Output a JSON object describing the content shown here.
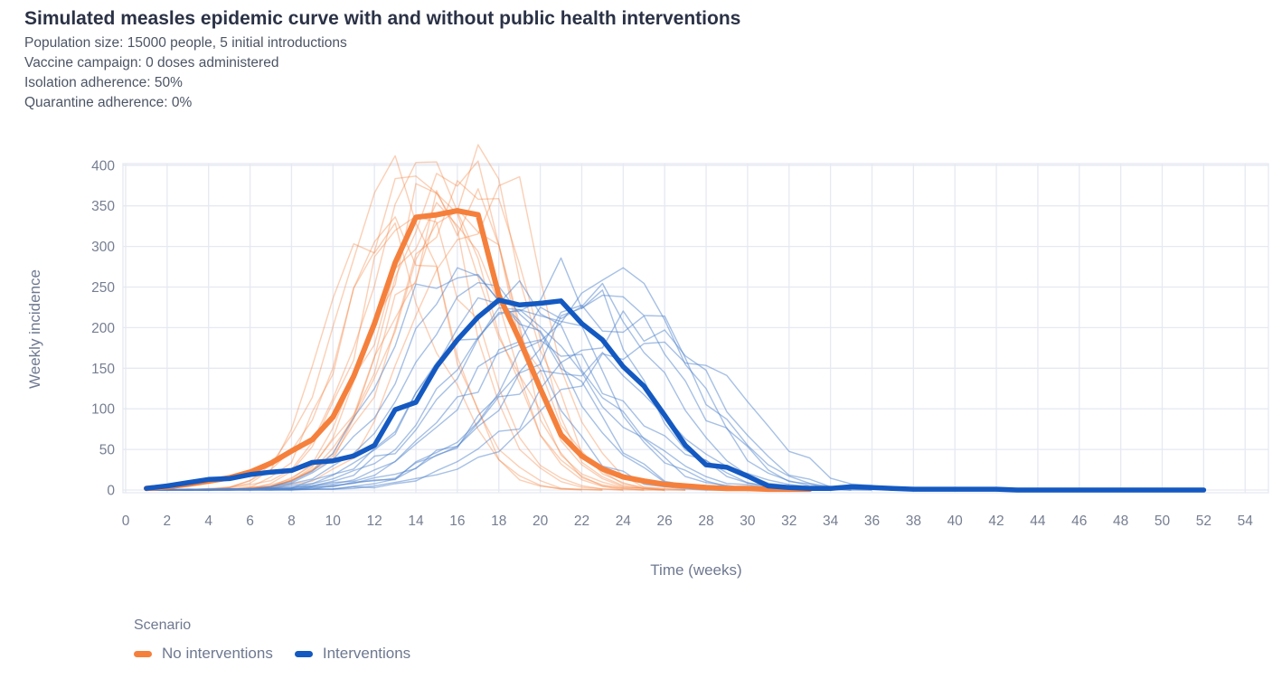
{
  "header": {
    "title": "Simulated measles epidemic curve with and without public health interventions",
    "subtitle_lines": [
      "Population size: 15000 people, 5 initial introductions",
      "Vaccine campaign: 0 doses administered",
      "Isolation adherence: 50%",
      "Quarantine adherence: 0%"
    ]
  },
  "chart_data": {
    "type": "line",
    "title": "Simulated measles epidemic curve with and without public health interventions",
    "xlabel": "Time (weeks)",
    "ylabel": "Weekly incidence",
    "xlim": [
      0,
      55
    ],
    "ylim": [
      0,
      400
    ],
    "grid": true,
    "x_ticks": [
      0,
      2,
      4,
      6,
      8,
      10,
      12,
      14,
      16,
      18,
      20,
      22,
      24,
      26,
      28,
      30,
      32,
      34,
      36,
      38,
      40,
      42,
      44,
      46,
      48,
      50,
      52,
      54
    ],
    "y_ticks": [
      0,
      50,
      100,
      150,
      200,
      250,
      300,
      350,
      400
    ],
    "colors": {
      "no_interventions": "#f5803c",
      "interventions": "#1459c1",
      "no_interventions_runs": "#f5803c",
      "interventions_runs": "#4d82cc",
      "grid": "#e6e9f2"
    },
    "legend": {
      "title": "Scenario",
      "position": "bottom-left",
      "entries": [
        {
          "label": "No interventions",
          "color": "#f5803c"
        },
        {
          "label": "Interventions",
          "color": "#1459c1"
        }
      ]
    },
    "series": [
      {
        "name": "No interventions",
        "role": "mean",
        "color": "#f5803c",
        "start_week": 1,
        "values": [
          2,
          4,
          7,
          11,
          15,
          22,
          33,
          48,
          62,
          90,
          140,
          205,
          280,
          336,
          339,
          344,
          339,
          240,
          185,
          125,
          68,
          42,
          26,
          16,
          11,
          7,
          5,
          3,
          2,
          2,
          1,
          1,
          1
        ]
      },
      {
        "name": "Interventions",
        "role": "mean",
        "color": "#1459c1",
        "start_week": 1,
        "values": [
          2,
          5,
          9,
          13,
          14,
          19,
          22,
          24,
          34,
          36,
          42,
          55,
          99,
          108,
          152,
          185,
          213,
          234,
          228,
          230,
          233,
          205,
          185,
          152,
          128,
          92,
          55,
          31,
          28,
          17,
          5,
          3,
          2,
          2,
          4,
          3,
          2,
          1,
          1,
          1,
          1,
          1,
          0,
          0,
          0,
          0,
          0,
          0,
          0,
          0,
          0,
          0
        ]
      }
    ],
    "runs": [
      {
        "scenario": "no_interventions",
        "peak_week": 13,
        "peak": 382,
        "sigma_rise": 2.6,
        "sigma_fall": 2.4,
        "seed": 11
      },
      {
        "scenario": "no_interventions",
        "peak_week": 14,
        "peak": 398,
        "sigma_rise": 2.9,
        "sigma_fall": 2.5,
        "seed": 12
      },
      {
        "scenario": "no_interventions",
        "peak_week": 15,
        "peak": 393,
        "sigma_rise": 3.1,
        "sigma_fall": 2.6,
        "seed": 13
      },
      {
        "scenario": "no_interventions",
        "peak_week": 16,
        "peak": 402,
        "sigma_rise": 3.0,
        "sigma_fall": 2.4,
        "seed": 14
      },
      {
        "scenario": "no_interventions",
        "peak_week": 17,
        "peak": 405,
        "sigma_rise": 3.3,
        "sigma_fall": 2.3,
        "seed": 15
      },
      {
        "scenario": "no_interventions",
        "peak_week": 15,
        "peak": 368,
        "sigma_rise": 2.7,
        "sigma_fall": 2.8,
        "seed": 16
      },
      {
        "scenario": "no_interventions",
        "peak_week": 14,
        "peak": 352,
        "sigma_rise": 2.5,
        "sigma_fall": 2.7,
        "seed": 17
      },
      {
        "scenario": "no_interventions",
        "peak_week": 16,
        "peak": 350,
        "sigma_rise": 3.2,
        "sigma_fall": 2.9,
        "seed": 18
      },
      {
        "scenario": "no_interventions",
        "peak_week": 17,
        "peak": 384,
        "sigma_rise": 3.4,
        "sigma_fall": 2.5,
        "seed": 19
      },
      {
        "scenario": "no_interventions",
        "peak_week": 13,
        "peak": 341,
        "sigma_rise": 2.4,
        "sigma_fall": 2.6,
        "seed": 20
      },
      {
        "scenario": "no_interventions",
        "peak_week": 15,
        "peak": 347,
        "sigma_rise": 2.8,
        "sigma_fall": 3.0,
        "seed": 21
      },
      {
        "scenario": "no_interventions",
        "peak_week": 18,
        "peak": 373,
        "sigma_rise": 3.5,
        "sigma_fall": 2.4,
        "seed": 22
      },
      {
        "scenario": "no_interventions",
        "peak_week": 12,
        "peak": 332,
        "sigma_rise": 2.3,
        "sigma_fall": 2.8,
        "seed": 23
      },
      {
        "scenario": "no_interventions",
        "peak_week": 16,
        "peak": 362,
        "sigma_rise": 3.0,
        "sigma_fall": 2.7,
        "seed": 24
      },
      {
        "scenario": "interventions",
        "peak_week": 16,
        "peak": 286,
        "sigma_rise": 3.2,
        "sigma_fall": 3.4,
        "seed": 31
      },
      {
        "scenario": "interventions",
        "peak_week": 17,
        "peak": 260,
        "sigma_rise": 3.5,
        "sigma_fall": 3.6,
        "seed": 32
      },
      {
        "scenario": "interventions",
        "peak_week": 18,
        "peak": 252,
        "sigma_rise": 3.8,
        "sigma_fall": 3.3,
        "seed": 33
      },
      {
        "scenario": "interventions",
        "peak_week": 19,
        "peak": 238,
        "sigma_rise": 4.0,
        "sigma_fall": 3.5,
        "seed": 34
      },
      {
        "scenario": "interventions",
        "peak_week": 20,
        "peak": 228,
        "sigma_rise": 4.2,
        "sigma_fall": 3.2,
        "seed": 35
      },
      {
        "scenario": "interventions",
        "peak_week": 21,
        "peak": 264,
        "sigma_rise": 4.4,
        "sigma_fall": 3.4,
        "seed": 36
      },
      {
        "scenario": "interventions",
        "peak_week": 22,
        "peak": 242,
        "sigma_rise": 4.6,
        "sigma_fall": 3.6,
        "seed": 37
      },
      {
        "scenario": "interventions",
        "peak_week": 23,
        "peak": 222,
        "sigma_rise": 4.3,
        "sigma_fall": 3.8,
        "seed": 38
      },
      {
        "scenario": "interventions",
        "peak_week": 24,
        "peak": 258,
        "sigma_rise": 4.8,
        "sigma_fall": 3.3,
        "seed": 39
      },
      {
        "scenario": "interventions",
        "peak_week": 24,
        "peak": 232,
        "sigma_rise": 5.0,
        "sigma_fall": 3.6,
        "seed": 40
      },
      {
        "scenario": "interventions",
        "peak_week": 25,
        "peak": 204,
        "sigma_rise": 4.7,
        "sigma_fall": 3.4,
        "seed": 41
      },
      {
        "scenario": "interventions",
        "peak_week": 26,
        "peak": 186,
        "sigma_rise": 5.2,
        "sigma_fall": 3.7,
        "seed": 42
      },
      {
        "scenario": "interventions",
        "peak_week": 20,
        "peak": 178,
        "sigma_rise": 4.0,
        "sigma_fall": 4.2,
        "seed": 43
      },
      {
        "scenario": "interventions",
        "peak_week": 22,
        "peak": 152,
        "sigma_rise": 4.5,
        "sigma_fall": 4.0,
        "seed": 44
      },
      {
        "scenario": "interventions",
        "peak_week": 18,
        "peak": 208,
        "sigma_rise": 3.6,
        "sigma_fall": 4.4,
        "seed": 45
      }
    ]
  }
}
